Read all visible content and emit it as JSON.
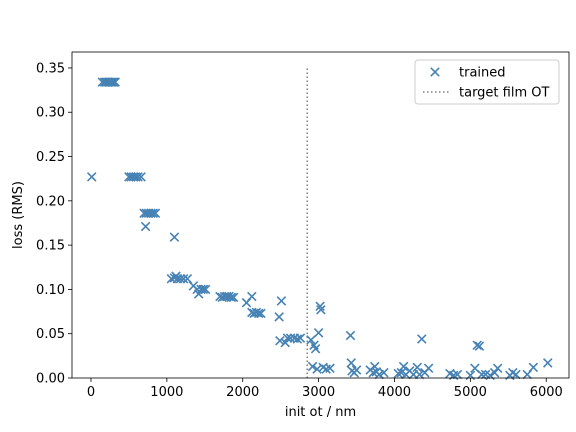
{
  "chart_data": {
    "type": "scatter",
    "xlabel": "init ot / nm",
    "ylabel": "loss (RMS)",
    "xlim": [
      -250,
      6300
    ],
    "ylim": [
      0,
      0.368
    ],
    "xticks": [
      0,
      1000,
      2000,
      3000,
      4000,
      5000,
      6000
    ],
    "xtick_labels": [
      "0",
      "1000",
      "2000",
      "3000",
      "4000",
      "5000",
      "6000"
    ],
    "yticks": [
      0.0,
      0.05,
      0.1,
      0.15,
      0.2,
      0.25,
      0.3,
      0.35
    ],
    "ytick_labels": [
      "0.00",
      "0.05",
      "0.10",
      "0.15",
      "0.20",
      "0.25",
      "0.30",
      "0.35"
    ],
    "grid": false,
    "legend_position": "top-right",
    "legend": [
      "trained",
      "target film OT"
    ],
    "colors": {
      "trained": "#4682b4",
      "target": "#808080"
    },
    "series": [
      {
        "name": "trained",
        "marker": "x",
        "points": [
          [
            10,
            0.227
          ],
          [
            150,
            0.334
          ],
          [
            180,
            0.334
          ],
          [
            200,
            0.334
          ],
          [
            220,
            0.334
          ],
          [
            240,
            0.334
          ],
          [
            260,
            0.334
          ],
          [
            280,
            0.334
          ],
          [
            300,
            0.334
          ],
          [
            320,
            0.334
          ],
          [
            500,
            0.227
          ],
          [
            530,
            0.227
          ],
          [
            560,
            0.227
          ],
          [
            590,
            0.227
          ],
          [
            620,
            0.227
          ],
          [
            660,
            0.227
          ],
          [
            700,
            0.186
          ],
          [
            730,
            0.186
          ],
          [
            760,
            0.186
          ],
          [
            790,
            0.186
          ],
          [
            820,
            0.186
          ],
          [
            850,
            0.186
          ],
          [
            720,
            0.171
          ],
          [
            1100,
            0.159
          ],
          [
            1060,
            0.112
          ],
          [
            1100,
            0.113
          ],
          [
            1140,
            0.112
          ],
          [
            1180,
            0.112
          ],
          [
            1220,
            0.112
          ],
          [
            1270,
            0.112
          ],
          [
            1120,
            0.115
          ],
          [
            1350,
            0.104
          ],
          [
            1400,
            0.1
          ],
          [
            1420,
            0.095
          ],
          [
            1450,
            0.1
          ],
          [
            1480,
            0.1
          ],
          [
            1510,
            0.1
          ],
          [
            1700,
            0.092
          ],
          [
            1730,
            0.091
          ],
          [
            1760,
            0.092
          ],
          [
            1790,
            0.092
          ],
          [
            1820,
            0.092
          ],
          [
            1850,
            0.091
          ],
          [
            1880,
            0.091
          ],
          [
            2050,
            0.085
          ],
          [
            2120,
            0.092
          ],
          [
            2120,
            0.074
          ],
          [
            2150,
            0.073
          ],
          [
            2180,
            0.074
          ],
          [
            2210,
            0.073
          ],
          [
            2240,
            0.073
          ],
          [
            2480,
            0.069
          ],
          [
            2510,
            0.087
          ],
          [
            2490,
            0.042
          ],
          [
            2560,
            0.04
          ],
          [
            2590,
            0.045
          ],
          [
            2630,
            0.045
          ],
          [
            2680,
            0.045
          ],
          [
            2720,
            0.044
          ],
          [
            2760,
            0.045
          ],
          [
            2900,
            0.043
          ],
          [
            2920,
            0.013
          ],
          [
            2940,
            0.037
          ],
          [
            2960,
            0.033
          ],
          [
            2980,
            0.01
          ],
          [
            3000,
            0.051
          ],
          [
            3020,
            0.081
          ],
          [
            3030,
            0.077
          ],
          [
            3060,
            0.012
          ],
          [
            3100,
            0.01
          ],
          [
            3150,
            0.011
          ],
          [
            3420,
            0.048
          ],
          [
            3430,
            0.017
          ],
          [
            3440,
            0.008
          ],
          [
            3470,
            0.006
          ],
          [
            3500,
            0.009
          ],
          [
            3680,
            0.009
          ],
          [
            3720,
            0.006
          ],
          [
            3740,
            0.013
          ],
          [
            3760,
            0.007
          ],
          [
            3800,
            0.004
          ],
          [
            3860,
            0.006
          ],
          [
            4050,
            0.005
          ],
          [
            4090,
            0.006
          ],
          [
            4120,
            0.013
          ],
          [
            4150,
            0.004
          ],
          [
            4200,
            0.008
          ],
          [
            4250,
            0.004
          ],
          [
            4300,
            0.012
          ],
          [
            4330,
            0.004
          ],
          [
            4360,
            0.044
          ],
          [
            4400,
            0.006
          ],
          [
            4450,
            0.011
          ],
          [
            4730,
            0.005
          ],
          [
            4780,
            0.003
          ],
          [
            4830,
            0.004
          ],
          [
            5000,
            0.003
          ],
          [
            5060,
            0.011
          ],
          [
            5090,
            0.037
          ],
          [
            5120,
            0.036
          ],
          [
            5150,
            0.004
          ],
          [
            5200,
            0.004
          ],
          [
            5260,
            0.003
          ],
          [
            5320,
            0.006
          ],
          [
            5360,
            0.011
          ],
          [
            5520,
            0.003
          ],
          [
            5560,
            0.006
          ],
          [
            5600,
            0.004
          ],
          [
            5750,
            0.004
          ],
          [
            5830,
            0.012
          ],
          [
            6020,
            0.017
          ]
        ]
      },
      {
        "name": "target film OT",
        "type": "vline",
        "style": "dotted",
        "x": 2850,
        "y_range": [
          0,
          0.35
        ]
      }
    ]
  }
}
